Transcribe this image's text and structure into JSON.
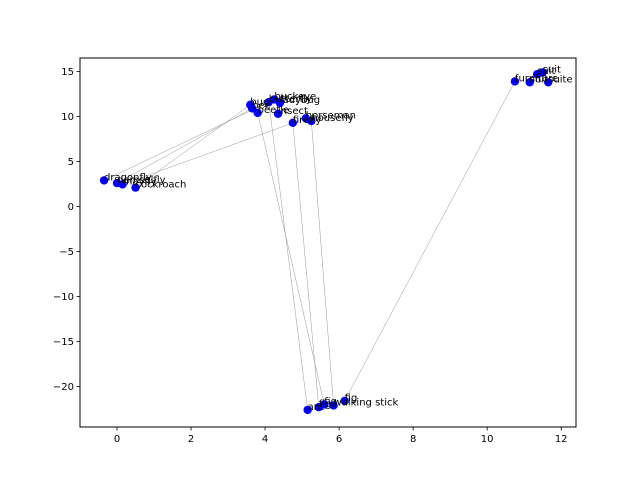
{
  "chart_data": {
    "type": "scatter",
    "title": "",
    "xlabel": "",
    "ylabel": "",
    "xlim": [
      -1,
      12.4
    ],
    "ylim": [
      -24.5,
      16.5
    ],
    "xticks": [
      0,
      2,
      4,
      6,
      8,
      10,
      12
    ],
    "yticks": [
      -20,
      -15,
      -10,
      -5,
      0,
      5,
      10,
      15
    ],
    "grid": false,
    "marker_color": "#0000ff",
    "line_color": "#9a9a9a",
    "points": [
      {
        "label": "dragonfly",
        "x": -0.35,
        "y": 2.9
      },
      {
        "label": "damselfly",
        "x": 0.0,
        "y": 2.6
      },
      {
        "label": "mayfly",
        "x": 0.15,
        "y": 2.45
      },
      {
        "label": "cockroach",
        "x": 0.5,
        "y": 2.1
      },
      {
        "label": "bug",
        "x": 3.6,
        "y": 11.3
      },
      {
        "label": "bee",
        "x": 3.65,
        "y": 10.9
      },
      {
        "label": "beetle",
        "x": 3.8,
        "y": 10.4
      },
      {
        "label": "butterfly",
        "x": 4.1,
        "y": 11.6
      },
      {
        "label": "buckeye",
        "x": 4.25,
        "y": 11.9
      },
      {
        "label": "ladybug",
        "x": 4.4,
        "y": 11.5
      },
      {
        "label": "insect",
        "x": 4.35,
        "y": 10.3
      },
      {
        "label": "firefly",
        "x": 4.75,
        "y": 9.3
      },
      {
        "label": "horseman",
        "x": 5.1,
        "y": 9.8
      },
      {
        "label": "housefly",
        "x": 5.25,
        "y": 9.5
      },
      {
        "label": "ant",
        "x": 5.15,
        "y": -22.6
      },
      {
        "label": "fig",
        "x": 5.45,
        "y": -22.3
      },
      {
        "label": "fig",
        "x": 5.6,
        "y": -22.0
      },
      {
        "label": "walking stick",
        "x": 5.85,
        "y": -22.1
      },
      {
        "label": "fig",
        "x": 6.15,
        "y": -21.6
      },
      {
        "label": "furniture",
        "x": 10.75,
        "y": 13.9
      },
      {
        "label": "suit",
        "x": 11.15,
        "y": 13.8
      },
      {
        "label": "suit",
        "x": 11.35,
        "y": 14.7
      },
      {
        "label": "suit",
        "x": 11.5,
        "y": 14.9
      },
      {
        "label": "suite",
        "x": 11.65,
        "y": 13.8
      }
    ],
    "texts": [
      {
        "text": "dragonfly",
        "x": -0.35,
        "y": 2.9
      },
      {
        "text": "damselfly",
        "x": 0.0,
        "y": 2.6
      },
      {
        "text": "mayfly",
        "x": 0.15,
        "y": 2.45
      },
      {
        "text": "cockroach",
        "x": 0.5,
        "y": 2.1
      },
      {
        "text": "bug",
        "x": 3.6,
        "y": 11.3
      },
      {
        "text": "bee",
        "x": 3.65,
        "y": 10.9
      },
      {
        "text": "beetle",
        "x": 3.8,
        "y": 10.4
      },
      {
        "text": "butterfly",
        "x": 4.1,
        "y": 11.6
      },
      {
        "text": "buckeye",
        "x": 4.25,
        "y": 11.9
      },
      {
        "text": "ladybug",
        "x": 4.4,
        "y": 11.5
      },
      {
        "text": "insect",
        "x": 4.35,
        "y": 10.3
      },
      {
        "text": "firefly",
        "x": 4.75,
        "y": 9.3
      },
      {
        "text": "horseman",
        "x": 5.1,
        "y": 9.8
      },
      {
        "text": "housefly",
        "x": 5.25,
        "y": 9.5
      },
      {
        "text": "ant",
        "x": 5.15,
        "y": -22.6
      },
      {
        "text": "fig",
        "x": 5.45,
        "y": -22.3
      },
      {
        "text": "fig",
        "x": 5.6,
        "y": -22.0
      },
      {
        "text": "walking stick",
        "x": 5.85,
        "y": -22.1
      },
      {
        "text": "fig",
        "x": 6.15,
        "y": -21.6
      },
      {
        "text": "furniture",
        "x": 10.75,
        "y": 13.9
      },
      {
        "text": "suit",
        "x": 11.15,
        "y": 13.8
      },
      {
        "text": "suit",
        "x": 11.35,
        "y": 14.7
      },
      {
        "text": "suit",
        "x": 11.5,
        "y": 14.9
      },
      {
        "text": "suite",
        "x": 11.65,
        "y": 13.8
      }
    ],
    "connections": [
      [
        0,
        7
      ],
      [
        1,
        5
      ],
      [
        2,
        12
      ],
      [
        3,
        4
      ],
      [
        7,
        14
      ],
      [
        6,
        16
      ],
      [
        11,
        15
      ],
      [
        13,
        17
      ],
      [
        18,
        19
      ]
    ]
  }
}
